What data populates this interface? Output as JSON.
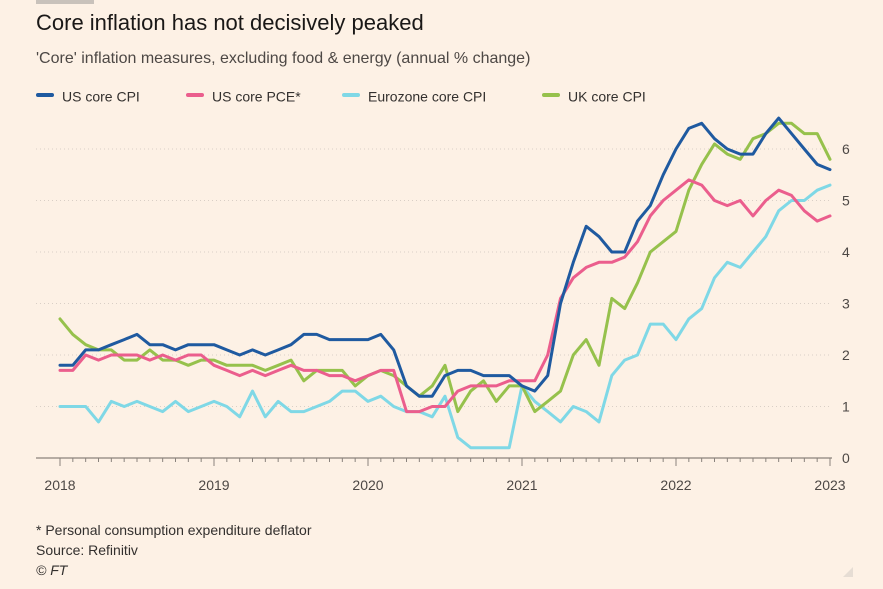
{
  "title": "Core inflation has not decisively peaked",
  "subtitle": "'Core' inflation measures, excluding food & energy (annual % change)",
  "footnote": "* Personal consumption expenditure deflator",
  "source": "Source: Refinitiv",
  "credit": "© FT",
  "chart_data": {
    "type": "line",
    "xlabel": "",
    "ylabel": "",
    "ylim": [
      0,
      7
    ],
    "yticks": [
      0,
      1,
      2,
      3,
      4,
      5,
      6
    ],
    "xticks": [
      "2018",
      "2019",
      "2020",
      "2021",
      "2022",
      "2023"
    ],
    "grid": "horizontal",
    "legend_position": "top-left",
    "x_start": "2018-01",
    "x_end": "2023-01",
    "series": [
      {
        "name": "US core CPI",
        "color": "#1f5aa0",
        "values": [
          1.8,
          1.8,
          2.1,
          2.1,
          2.2,
          2.3,
          2.4,
          2.2,
          2.2,
          2.1,
          2.2,
          2.2,
          2.2,
          2.1,
          2.0,
          2.1,
          2.0,
          2.1,
          2.2,
          2.4,
          2.4,
          2.3,
          2.3,
          2.3,
          2.3,
          2.4,
          2.1,
          1.4,
          1.2,
          1.2,
          1.6,
          1.7,
          1.7,
          1.6,
          1.6,
          1.6,
          1.4,
          1.3,
          1.6,
          3.0,
          3.8,
          4.5,
          4.3,
          4.0,
          4.0,
          4.6,
          4.9,
          5.5,
          6.0,
          6.4,
          6.5,
          6.2,
          6.0,
          5.9,
          5.9,
          6.3,
          6.6,
          6.3,
          6.0,
          5.7,
          5.6
        ]
      },
      {
        "name": "US core PCE*",
        "color": "#eb5e8d",
        "values": [
          1.7,
          1.7,
          2.0,
          1.9,
          2.0,
          2.0,
          2.0,
          1.9,
          2.0,
          1.9,
          2.0,
          2.0,
          1.8,
          1.7,
          1.6,
          1.7,
          1.6,
          1.7,
          1.8,
          1.7,
          1.7,
          1.6,
          1.6,
          1.5,
          1.6,
          1.7,
          1.7,
          0.9,
          0.9,
          1.0,
          1.0,
          1.3,
          1.4,
          1.4,
          1.4,
          1.5,
          1.5,
          1.5,
          2.0,
          3.1,
          3.5,
          3.7,
          3.8,
          3.8,
          3.9,
          4.2,
          4.7,
          5.0,
          5.2,
          5.4,
          5.3,
          5.0,
          4.9,
          5.0,
          4.7,
          5.0,
          5.2,
          5.1,
          4.8,
          4.6,
          4.7
        ]
      },
      {
        "name": "Eurozone core CPI",
        "color": "#7fd8e6",
        "values": [
          1.0,
          1.0,
          1.0,
          0.7,
          1.1,
          1.0,
          1.1,
          1.0,
          0.9,
          1.1,
          0.9,
          1.0,
          1.1,
          1.0,
          0.8,
          1.3,
          0.8,
          1.1,
          0.9,
          0.9,
          1.0,
          1.1,
          1.3,
          1.3,
          1.1,
          1.2,
          1.0,
          0.9,
          0.9,
          0.8,
          1.2,
          0.4,
          0.2,
          0.2,
          0.2,
          0.2,
          1.4,
          1.1,
          0.9,
          0.7,
          1.0,
          0.9,
          0.7,
          1.6,
          1.9,
          2.0,
          2.6,
          2.6,
          2.3,
          2.7,
          2.9,
          3.5,
          3.8,
          3.7,
          4.0,
          4.3,
          4.8,
          5.0,
          5.0,
          5.2,
          5.3
        ]
      },
      {
        "name": "UK core CPI",
        "color": "#96c14c",
        "values": [
          2.7,
          2.4,
          2.2,
          2.1,
          2.1,
          1.9,
          1.9,
          2.1,
          1.9,
          1.9,
          1.8,
          1.9,
          1.9,
          1.8,
          1.8,
          1.8,
          1.7,
          1.8,
          1.9,
          1.5,
          1.7,
          1.7,
          1.7,
          1.4,
          1.6,
          1.7,
          1.6,
          1.4,
          1.2,
          1.4,
          1.8,
          0.9,
          1.3,
          1.5,
          1.1,
          1.4,
          1.4,
          0.9,
          1.1,
          1.3,
          2.0,
          2.3,
          1.8,
          3.1,
          2.9,
          3.4,
          4.0,
          4.2,
          4.4,
          5.2,
          5.7,
          6.1,
          5.9,
          5.8,
          6.2,
          6.3,
          6.5,
          6.5,
          6.3,
          6.3,
          5.8
        ]
      }
    ]
  }
}
